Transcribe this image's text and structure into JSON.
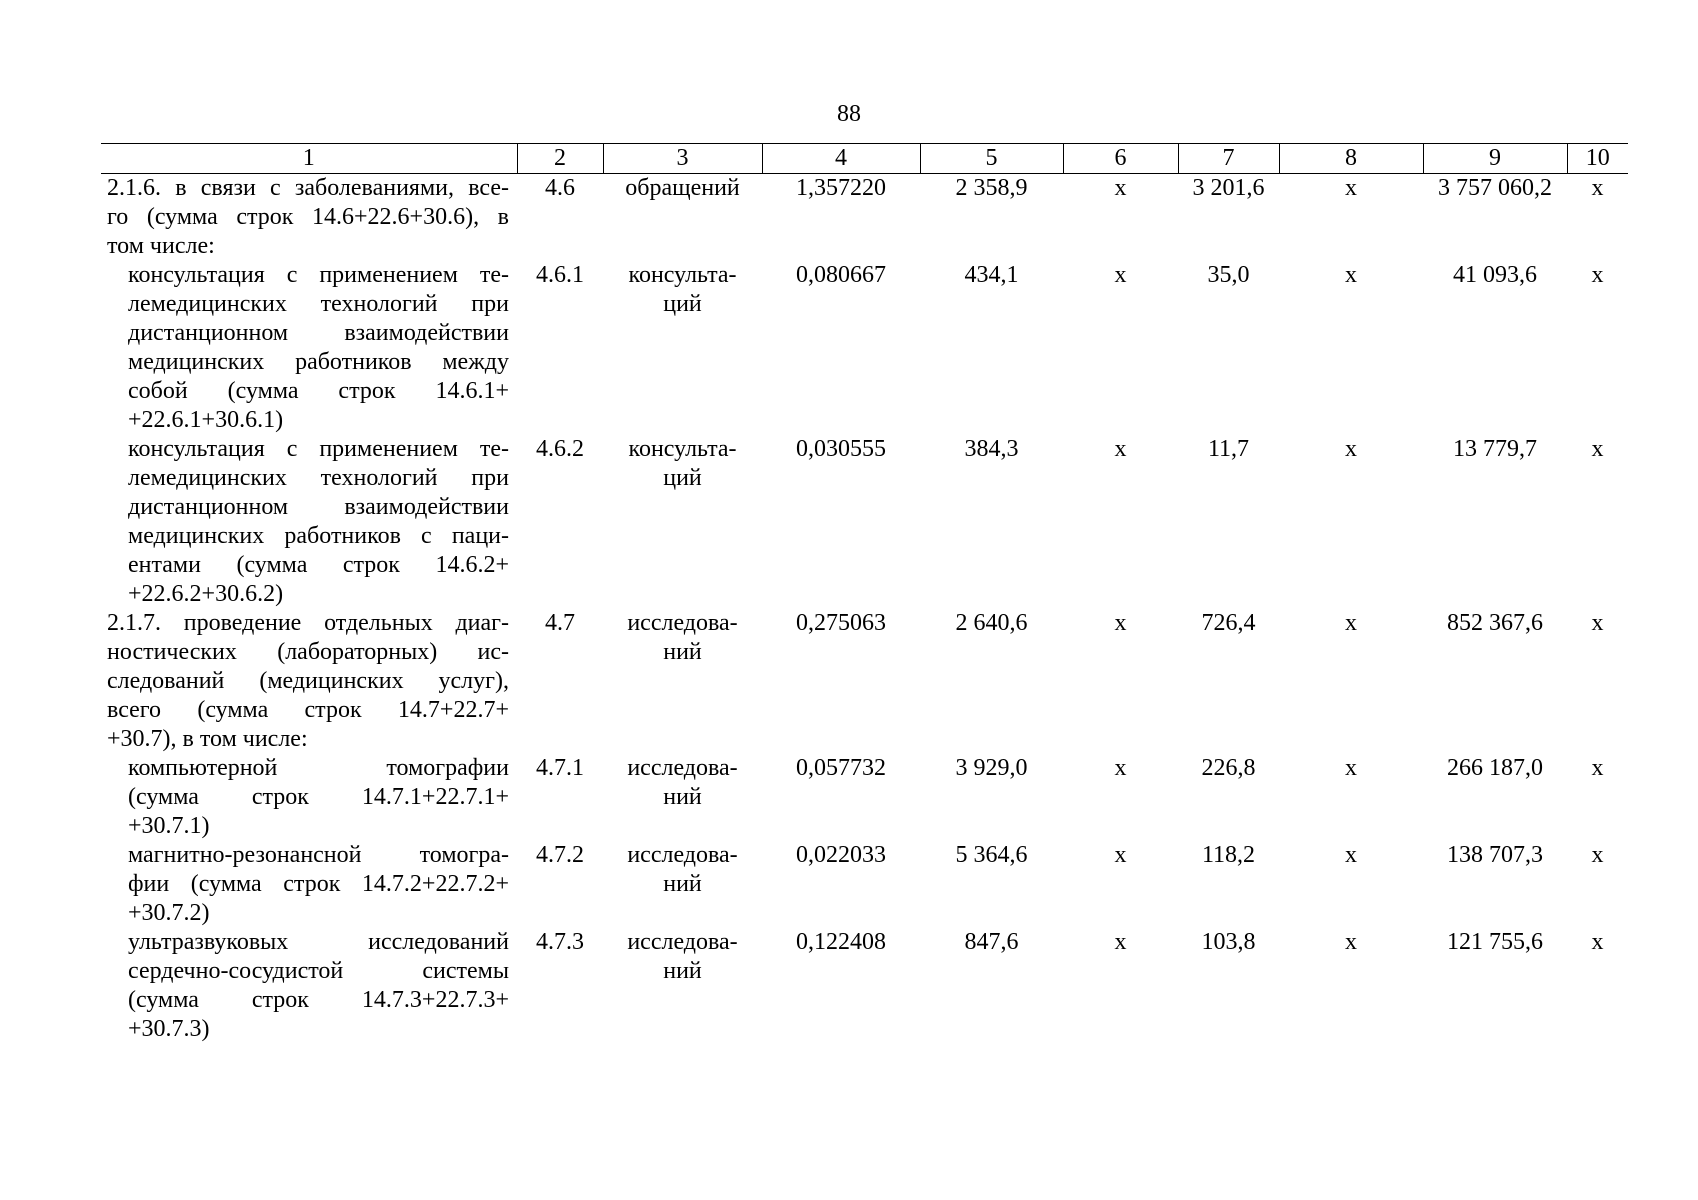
{
  "page_number": "88",
  "table": {
    "header": [
      "1",
      "2",
      "3",
      "4",
      "5",
      "6",
      "7",
      "8",
      "9",
      "10"
    ],
    "rows": [
      {
        "level": 1,
        "name_lines": [
          "2.1.6. в связи с заболеваниями, все-",
          "го (сумма строк 14.6+22.6+30.6), в",
          "том числе:"
        ],
        "code": "4.6",
        "unit_lines": [
          "обращений"
        ],
        "cells": [
          "1,357220",
          "2 358,9",
          "х",
          "3 201,6",
          "х",
          "3 757 060,2",
          "х"
        ]
      },
      {
        "level": 2,
        "name_lines": [
          "консультация с применением те-",
          "лемедицинских технологий при",
          "дистанционном взаимодействии",
          "медицинских работников между",
          "собой (сумма строк 14.6.1+",
          "+22.6.1+30.6.1)"
        ],
        "code": "4.6.1",
        "unit_lines": [
          "консульта-",
          "ций"
        ],
        "cells": [
          "0,080667",
          "434,1",
          "х",
          "35,0",
          "х",
          "41 093,6",
          "х"
        ]
      },
      {
        "level": 2,
        "name_lines": [
          "консультация с применением те-",
          "лемедицинских технологий при",
          "дистанционном взаимодействии",
          "медицинских работников с паци-",
          "ентами (сумма строк 14.6.2+",
          "+22.6.2+30.6.2)"
        ],
        "code": "4.6.2",
        "unit_lines": [
          "консульта-",
          "ций"
        ],
        "cells": [
          "0,030555",
          "384,3",
          "х",
          "11,7",
          "х",
          "13 779,7",
          "х"
        ]
      },
      {
        "level": 1,
        "name_lines": [
          "2.1.7. проведение отдельных диаг-",
          "ностических (лабораторных) ис-",
          "следований (медицинских услуг),",
          "всего (сумма строк 14.7+22.7+",
          "+30.7), в том числе:"
        ],
        "code": "4.7",
        "unit_lines": [
          "исследова-",
          "ний"
        ],
        "cells": [
          "0,275063",
          "2 640,6",
          "х",
          "726,4",
          "х",
          "852 367,6",
          "х"
        ]
      },
      {
        "level": 2,
        "name_lines": [
          "компьютерной томографии",
          "(сумма строк 14.7.1+22.7.1+",
          "+30.7.1)"
        ],
        "code": "4.7.1",
        "unit_lines": [
          "исследова-",
          "ний"
        ],
        "cells": [
          "0,057732",
          "3 929,0",
          "х",
          "226,8",
          "х",
          "266 187,0",
          "х"
        ]
      },
      {
        "level": 2,
        "name_lines": [
          "магнитно-резонансной томогра-",
          "фии (сумма строк 14.7.2+22.7.2+",
          "+30.7.2)"
        ],
        "code": "4.7.2",
        "unit_lines": [
          "исследова-",
          "ний"
        ],
        "cells": [
          "0,022033",
          "5 364,6",
          "х",
          "118,2",
          "х",
          "138 707,3",
          "х"
        ]
      },
      {
        "level": 2,
        "name_lines": [
          "ультразвуковых исследований",
          "сердечно-сосудистой системы",
          "(сумма строк 14.7.3+22.7.3+",
          "+30.7.3)"
        ],
        "code": "4.7.3",
        "unit_lines": [
          "исследова-",
          "ний"
        ],
        "cells": [
          "0,122408",
          "847,6",
          "х",
          "103,8",
          "х",
          "121 755,6",
          "х"
        ]
      }
    ]
  }
}
